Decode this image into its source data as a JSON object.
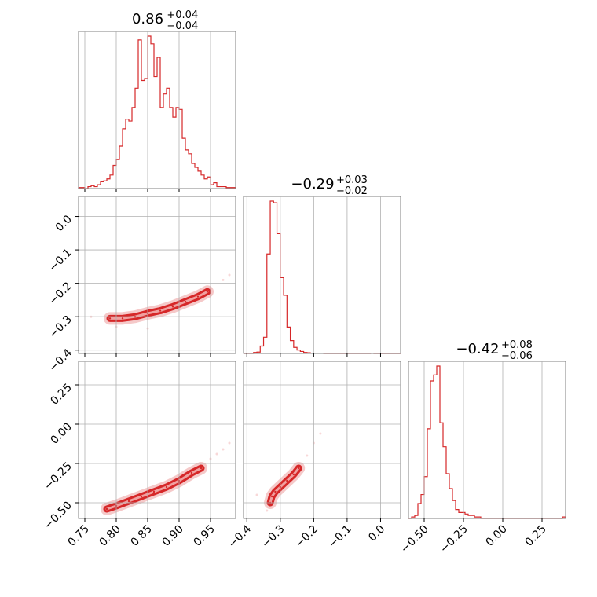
{
  "chart_data": {
    "type": "corner",
    "color": "#d62728",
    "grid": true,
    "params": [
      {
        "title": {
          "median": "0.86",
          "plus": "+0.04",
          "minus": "−0.04"
        },
        "range": [
          0.74,
          0.99
        ],
        "ticks": [
          0.75,
          0.8,
          0.85,
          0.9,
          0.95
        ],
        "tick_labels": [
          "0.75",
          "0.80",
          "0.85",
          "0.90",
          "0.95"
        ],
        "hist_edges_start": 0.74,
        "hist_bin_width": 0.005,
        "hist_counts": [
          1,
          1,
          0,
          2,
          3,
          2,
          4,
          7,
          8,
          10,
          14,
          24,
          30,
          44,
          62,
          72,
          70,
          84,
          104,
          154,
          112,
          114,
          158,
          150,
          116,
          136,
          84,
          98,
          104,
          84,
          74,
          84,
          82,
          52,
          40,
          36,
          26,
          22,
          18,
          14,
          10,
          12,
          4,
          6,
          2,
          2,
          2,
          1,
          1,
          1
        ]
      },
      {
        "title": {
          "median": "−0.29",
          "plus": "+0.03",
          "minus": "−0.02"
        },
        "range": [
          -0.41,
          0.06
        ],
        "ticks": [
          -0.4,
          -0.3,
          -0.2,
          -0.1,
          0.0
        ],
        "tick_labels": [
          "−0.4",
          "−0.3",
          "−0.2",
          "−0.1",
          "0.0"
        ],
        "hist_edges_start": -0.41,
        "hist_bin_width": 0.01,
        "hist_counts": [
          0,
          0,
          0,
          3,
          4,
          22,
          48,
          294,
          450,
          445,
          354,
          224,
          172,
          78,
          38,
          18,
          10,
          6,
          3,
          2,
          1,
          1,
          1,
          1,
          0,
          0,
          0,
          0,
          0,
          0,
          0,
          0,
          0,
          0,
          0,
          0,
          0,
          0,
          1,
          0,
          0,
          0,
          0,
          0,
          0,
          0,
          0
        ]
      },
      {
        "title": {
          "median": "−0.42",
          "plus": "+0.08",
          "minus": "−0.06"
        },
        "range": [
          -0.6,
          0.4
        ],
        "ticks": [
          -0.5,
          -0.25,
          0.0,
          0.25
        ],
        "tick_labels": [
          "−0.50",
          "−0.25",
          "0.00",
          "0.25"
        ],
        "hist_edges_start": -0.6,
        "hist_bin_width": 0.02,
        "hist_counts": [
          0,
          1,
          2,
          10,
          16,
          28,
          60,
          92,
          96,
          102,
          64,
          48,
          30,
          20,
          12,
          6,
          4,
          4,
          3,
          2,
          2,
          1,
          1,
          0,
          0,
          0,
          0,
          0,
          0,
          0,
          0,
          0,
          0,
          0,
          0,
          0,
          0,
          0,
          0,
          0,
          0,
          0,
          0,
          0,
          0,
          0,
          0,
          0,
          0,
          1
        ]
      }
    ],
    "y_axes": [
      null,
      {
        "ticks": [
          0.0,
          -0.1,
          -0.2,
          -0.3,
          -0.4
        ],
        "tick_labels": [
          "0.0",
          "−0.1",
          "−0.2",
          "−0.3",
          "−0.4"
        ]
      },
      {
        "ticks": [
          0.25,
          0.0,
          -0.25,
          -0.5
        ],
        "tick_labels": [
          "0.25",
          "0.00",
          "−0.25",
          "−0.50"
        ]
      }
    ],
    "scatter_2d": [
      {
        "x_param": 0,
        "y_param": 1,
        "core": [
          [
            0.79,
            -0.305
          ],
          [
            0.81,
            -0.305
          ],
          [
            0.83,
            -0.3
          ],
          [
            0.85,
            -0.29
          ],
          [
            0.87,
            -0.282
          ],
          [
            0.89,
            -0.27
          ],
          [
            0.91,
            -0.255
          ],
          [
            0.93,
            -0.24
          ],
          [
            0.945,
            -0.225
          ]
        ],
        "outer": [
          [
            0.76,
            -0.3
          ],
          [
            0.98,
            -0.175
          ],
          [
            0.8,
            -0.33
          ],
          [
            0.97,
            -0.19
          ],
          [
            0.85,
            -0.335
          ],
          [
            0.95,
            -0.215
          ]
        ]
      },
      {
        "x_param": 0,
        "y_param": 2,
        "core": [
          [
            0.785,
            -0.54
          ],
          [
            0.8,
            -0.52
          ],
          [
            0.82,
            -0.49
          ],
          [
            0.84,
            -0.46
          ],
          [
            0.86,
            -0.43
          ],
          [
            0.88,
            -0.4
          ],
          [
            0.9,
            -0.36
          ],
          [
            0.92,
            -0.31
          ],
          [
            0.935,
            -0.28
          ]
        ],
        "outer": [
          [
            0.95,
            -0.22
          ],
          [
            0.97,
            -0.16
          ],
          [
            0.98,
            -0.12
          ],
          [
            0.96,
            -0.19
          ]
        ]
      },
      {
        "x_param": 1,
        "y_param": 2,
        "core": [
          [
            -0.33,
            -0.5
          ],
          [
            -0.325,
            -0.46
          ],
          [
            -0.315,
            -0.43
          ],
          [
            -0.3,
            -0.4
          ],
          [
            -0.28,
            -0.36
          ],
          [
            -0.26,
            -0.32
          ],
          [
            -0.245,
            -0.28
          ]
        ],
        "outer": [
          [
            -0.37,
            -0.45
          ],
          [
            -0.2,
            -0.12
          ],
          [
            -0.18,
            -0.06
          ],
          [
            -0.34,
            -0.55
          ],
          [
            -0.22,
            -0.2
          ]
        ]
      }
    ]
  }
}
